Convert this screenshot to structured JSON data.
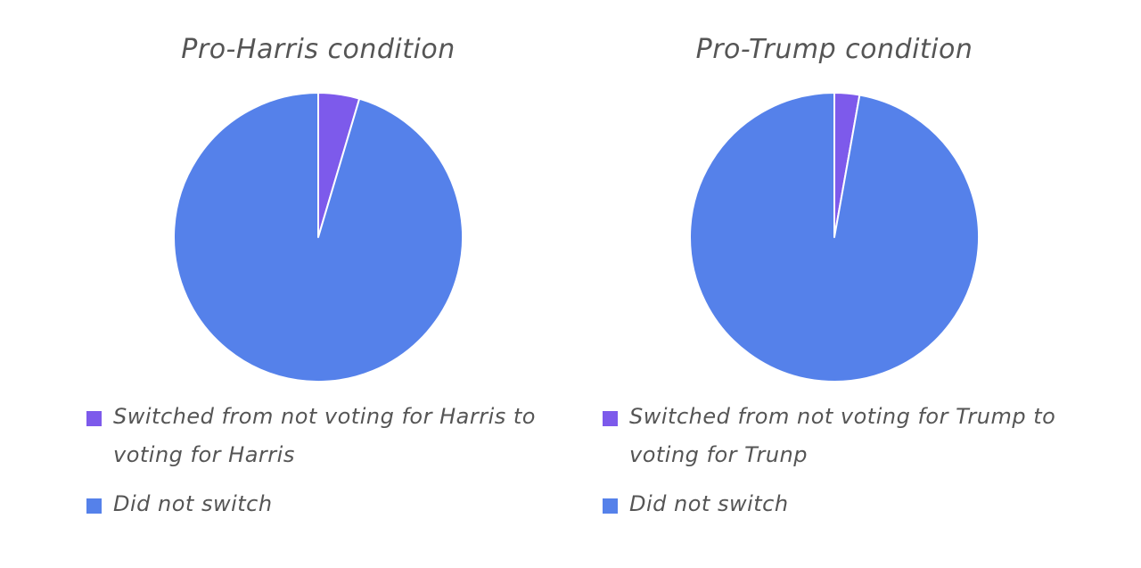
{
  "chart_data": [
    {
      "type": "pie",
      "title": "Pro-Harris condition",
      "categories": [
        "Switched from not voting for Harris to voting for Harris",
        "Did not switch"
      ],
      "values": [
        4.6,
        95.4
      ],
      "colors": [
        "#7d5aeb",
        "#5581ea"
      ],
      "legend_position": "bottom"
    },
    {
      "type": "pie",
      "title": "Pro-Trump condition",
      "categories": [
        "Switched from not voting for Trump to voting for Trunp",
        "Did not switch"
      ],
      "values": [
        2.8,
        97.2
      ],
      "colors": [
        "#7d5aeb",
        "#5581ea"
      ],
      "legend_position": "bottom"
    }
  ]
}
